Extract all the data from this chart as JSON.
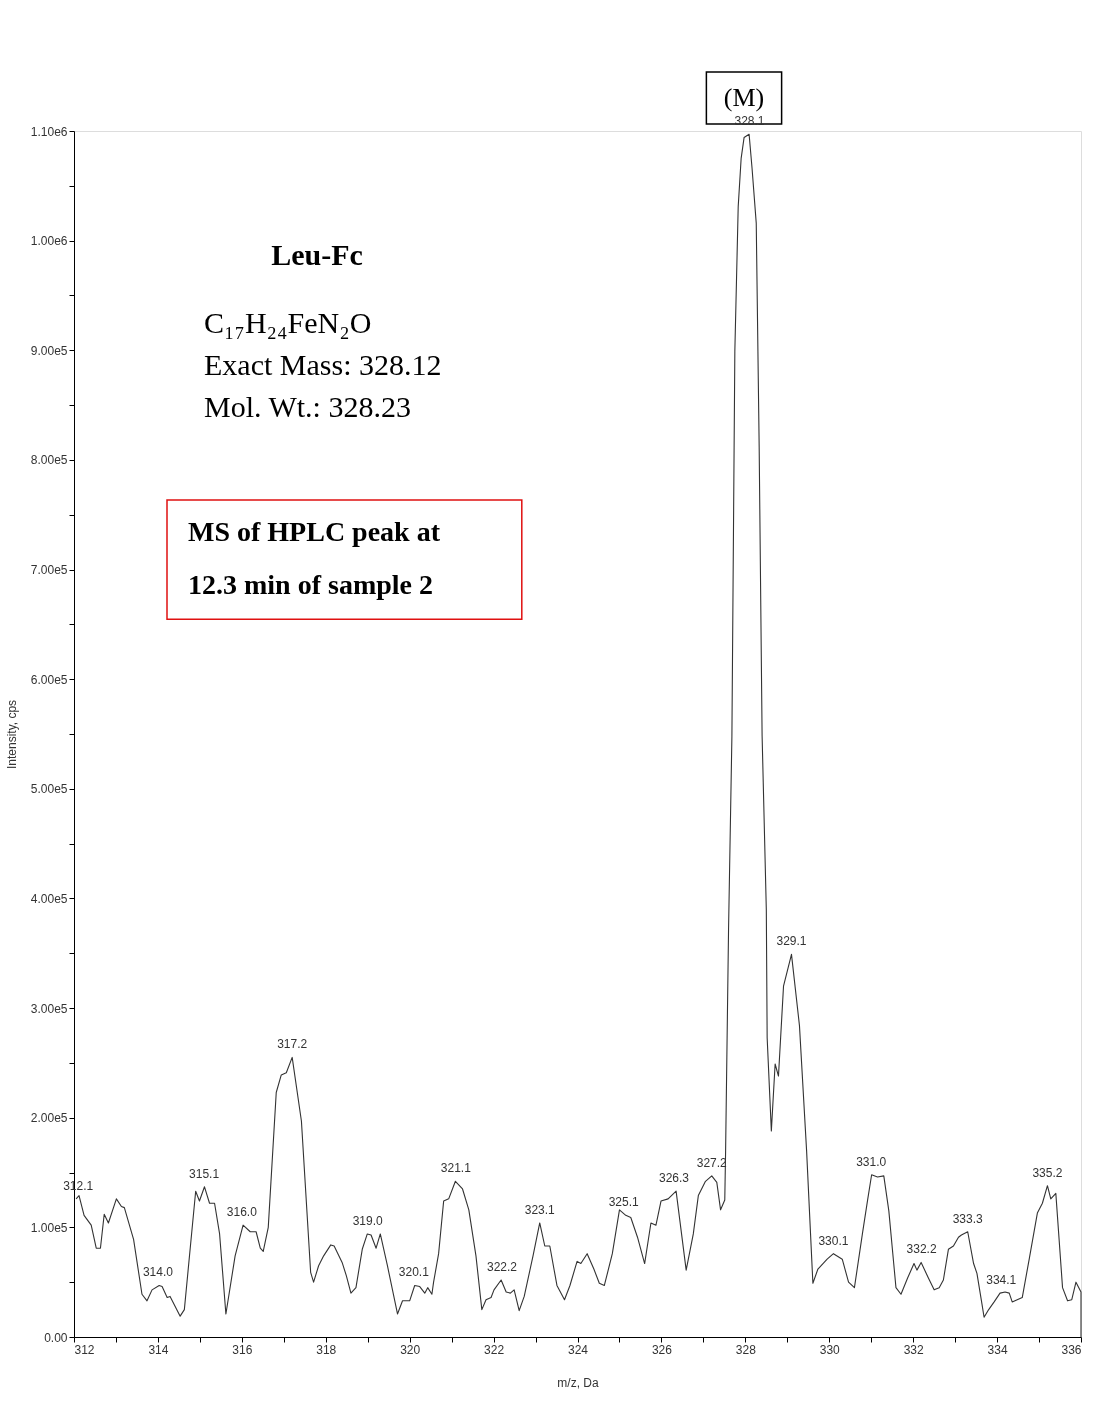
{
  "chart_data": {
    "type": "line",
    "xlabel": "m/z, Da",
    "ylabel": "Intensity, cps",
    "xlim": [
      312,
      336
    ],
    "ylim": [
      0,
      1100000
    ],
    "xticks": [
      312,
      {
        "value": 313,
        "label": null
      },
      314,
      {
        "value": 315,
        "label": null
      },
      316,
      {
        "value": 317,
        "label": null
      },
      318,
      {
        "value": 319,
        "label": null
      },
      320,
      {
        "value": 321,
        "label": null
      },
      322,
      {
        "value": 323,
        "label": null
      },
      324,
      {
        "value": 325,
        "label": null
      },
      326,
      {
        "value": 327,
        "label": null
      },
      328,
      {
        "value": 329,
        "label": null
      },
      330,
      {
        "value": 331,
        "label": null
      },
      332,
      {
        "value": 333,
        "label": null
      },
      334,
      {
        "value": 335,
        "label": null
      },
      336
    ],
    "yticks": [
      {
        "value": 0,
        "label": "0.00"
      },
      {
        "value": 50000,
        "label": null
      },
      {
        "value": 100000,
        "label": "1.00e5"
      },
      {
        "value": 150000,
        "label": null
      },
      {
        "value": 200000,
        "label": "2.00e5"
      },
      {
        "value": 250000,
        "label": null
      },
      {
        "value": 300000,
        "label": "3.00e5"
      },
      {
        "value": 350000,
        "label": null
      },
      {
        "value": 400000,
        "label": "4.00e5"
      },
      {
        "value": 450000,
        "label": null
      },
      {
        "value": 500000,
        "label": "5.00e5"
      },
      {
        "value": 550000,
        "label": null
      },
      {
        "value": 600000,
        "label": "6.00e5"
      },
      {
        "value": 650000,
        "label": null
      },
      {
        "value": 700000,
        "label": "7.00e5"
      },
      {
        "value": 750000,
        "label": null
      },
      {
        "value": 800000,
        "label": "8.00e5"
      },
      {
        "value": 850000,
        "label": null
      },
      {
        "value": 900000,
        "label": "9.00e5"
      },
      {
        "value": 950000,
        "label": null
      },
      {
        "value": 1000000,
        "label": "1.00e6"
      },
      {
        "value": 1050000,
        "label": null
      },
      {
        "value": 1100000,
        "label": "1.10e6"
      }
    ],
    "grid": false,
    "line_style": "solid",
    "marker": "none",
    "series": [
      {
        "color": "#333333",
        "x": [
          312.05,
          312.12,
          312.24,
          312.41,
          312.53,
          312.63,
          312.72,
          312.82,
          313.01,
          313.13,
          313.2,
          313.42,
          313.62,
          313.74,
          313.86,
          314.03,
          314.1,
          314.22,
          314.29,
          314.53,
          314.63,
          314.9,
          314.99,
          315.11,
          315.23,
          315.35,
          315.47,
          315.62,
          315.84,
          316.03,
          316.2,
          316.34,
          316.44,
          316.51,
          316.63,
          316.82,
          316.94,
          317.06,
          317.2,
          317.42,
          317.64,
          317.71,
          317.83,
          317.95,
          318.12,
          318.2,
          318.39,
          318.49,
          318.6,
          318.72,
          318.87,
          318.99,
          319.08,
          319.2,
          319.3,
          319.47,
          319.71,
          319.83,
          320.0,
          320.12,
          320.24,
          320.36,
          320.43,
          320.53,
          320.57,
          320.69,
          320.81,
          320.93,
          321.09,
          321.26,
          321.41,
          321.58,
          321.72,
          321.82,
          321.94,
          322.01,
          322.18,
          322.3,
          322.4,
          322.49,
          322.61,
          322.73,
          322.94,
          323.1,
          323.22,
          323.34,
          323.51,
          323.69,
          323.82,
          323.99,
          324.08,
          324.23,
          324.39,
          324.52,
          324.64,
          324.83,
          325.0,
          325.15,
          325.27,
          325.43,
          325.6,
          325.75,
          325.87,
          325.99,
          326.16,
          326.35,
          326.59,
          326.76,
          326.88,
          327.05,
          327.2,
          327.32,
          327.41,
          327.51,
          327.53,
          327.6,
          327.68,
          327.75,
          327.83,
          327.9,
          327.97,
          328.09,
          328.16,
          328.26,
          328.33,
          328.4,
          328.5,
          328.52,
          328.62,
          328.71,
          328.79,
          328.91,
          329.1,
          329.29,
          329.46,
          329.61,
          329.73,
          329.95,
          330.1,
          330.31,
          330.46,
          330.6,
          330.79,
          330.91,
          331.01,
          331.15,
          331.3,
          331.42,
          331.59,
          331.71,
          331.87,
          332.02,
          332.09,
          332.19,
          332.36,
          332.5,
          332.62,
          332.72,
          332.84,
          332.96,
          333.08,
          333.15,
          333.3,
          333.44,
          333.52,
          333.64,
          333.69,
          333.8,
          333.93,
          334.07,
          334.19,
          334.29,
          334.36,
          334.48,
          334.6,
          334.77,
          334.96,
          335.08,
          335.2,
          335.28,
          335.4,
          335.56,
          335.68,
          335.78,
          335.88,
          336.0,
          336.0
        ],
        "values": [
          126000,
          129000,
          111000,
          102000,
          81000,
          81000,
          112000,
          104000,
          126000,
          119000,
          118000,
          89000,
          39000,
          33000,
          43000,
          47000,
          46000,
          36000,
          37000,
          19000,
          25000,
          133000,
          124000,
          137000,
          122000,
          122000,
          94000,
          21000,
          74000,
          102000,
          96000,
          96000,
          81000,
          78000,
          100000,
          223000,
          239000,
          241000,
          255000,
          197000,
          59000,
          50000,
          65000,
          74000,
          84000,
          83000,
          68000,
          56000,
          40000,
          45000,
          80000,
          94000,
          93000,
          81000,
          94000,
          65000,
          21000,
          33000,
          33000,
          47000,
          46000,
          40000,
          45000,
          39000,
          50000,
          76000,
          124000,
          126000,
          142000,
          135000,
          116000,
          74000,
          25000,
          34000,
          36000,
          43000,
          52000,
          41000,
          40000,
          43000,
          24000,
          37000,
          74000,
          104000,
          83000,
          83000,
          47000,
          34000,
          47000,
          69000,
          67000,
          76000,
          62000,
          49000,
          47000,
          76000,
          116000,
          111000,
          109000,
          91000,
          67000,
          104000,
          102000,
          124000,
          126000,
          133000,
          61000,
          94000,
          129000,
          142000,
          147000,
          141000,
          116000,
          125000,
          170000,
          372000,
          548000,
          899000,
          1031000,
          1075000,
          1094000,
          1097000,
          1066000,
          1016000,
          811000,
          548000,
          390000,
          273000,
          188000,
          249000,
          238000,
          320000,
          349000,
          284000,
          170000,
          49000,
          62000,
          71000,
          76000,
          71000,
          50000,
          45000,
          94000,
          124000,
          148000,
          146000,
          147000,
          115000,
          45000,
          39000,
          54000,
          67000,
          61000,
          68000,
          54000,
          43000,
          45000,
          52000,
          80000,
          83000,
          91000,
          93000,
          96000,
          67000,
          58000,
          30000,
          18000,
          25000,
          32000,
          40000,
          41000,
          40000,
          32000,
          34000,
          36000,
          72000,
          113000,
          122000,
          138000,
          126000,
          131000,
          45000,
          33000,
          34000,
          50000,
          41000,
          0
        ]
      }
    ],
    "annotations": [
      "(M)",
      "Leu-Fc",
      "C₁₇H₂₄FeN₂O",
      "Exact Mass: 328.12",
      "Mol. Wt.: 328.23",
      "MS of HPLC peak at 12.3 min of sample 2",
      {
        "text": "312.1",
        "x": 312.1,
        "y": 126000
      },
      {
        "text": "314.0",
        "x": 314.0,
        "y": 47000
      },
      {
        "text": "315.1",
        "x": 315.1,
        "y": 137000
      },
      {
        "text": "316.0",
        "x": 316.0,
        "y": 102000
      },
      {
        "text": "317.2",
        "x": 317.2,
        "y": 255000
      },
      {
        "text": "319.0",
        "x": 319.0,
        "y": 94000
      },
      {
        "text": "320.1",
        "x": 320.1,
        "y": 47000
      },
      {
        "text": "321.1",
        "x": 321.1,
        "y": 142000
      },
      {
        "text": "322.2",
        "x": 322.2,
        "y": 52000
      },
      {
        "text": "323.1",
        "x": 323.1,
        "y": 104000
      },
      {
        "text": "325.1",
        "x": 325.1,
        "y": 111000
      },
      {
        "text": "326.3",
        "x": 326.3,
        "y": 133000
      },
      {
        "text": "327.2",
        "x": 327.2,
        "y": 147000
      },
      {
        "text": "328.1",
        "x": 328.1,
        "y": 1097000
      },
      {
        "text": "329.1",
        "x": 329.1,
        "y": 349000
      },
      {
        "text": "330.1",
        "x": 330.1,
        "y": 76000
      },
      {
        "text": "331.0",
        "x": 331.0,
        "y": 148000
      },
      {
        "text": "332.2",
        "x": 332.2,
        "y": 68000
      },
      {
        "text": "333.3",
        "x": 333.3,
        "y": 96000
      },
      {
        "text": "334.1",
        "x": 334.1,
        "y": 40000
      },
      {
        "text": "335.2",
        "x": 335.2,
        "y": 138000
      }
    ]
  }
}
